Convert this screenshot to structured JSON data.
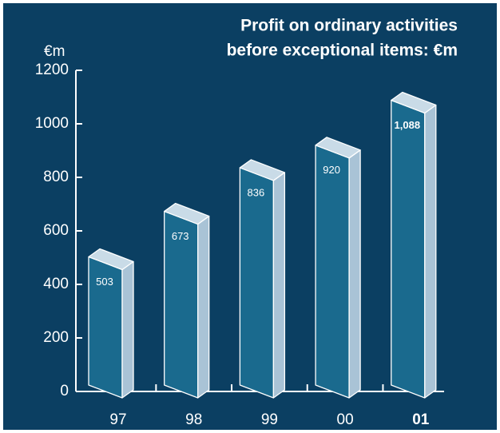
{
  "chart_data": {
    "type": "bar3d",
    "title": [
      "Profit on ordinary activities",
      "before exceptional items: €m"
    ],
    "y_label": "€m",
    "categories": [
      "97",
      "98",
      "99",
      "00",
      "01"
    ],
    "values": [
      503,
      673,
      836,
      920,
      1088
    ],
    "value_labels": [
      "503",
      "673",
      "836",
      "920",
      "1,088"
    ],
    "ylim": [
      0,
      1200
    ],
    "yticks": [
      0,
      200,
      400,
      600,
      800,
      1000,
      1200
    ],
    "colors": {
      "background": "#0b3f62",
      "front": "#1a6a8e",
      "side": "#a9c3d6",
      "top": "#c9dbe7"
    }
  }
}
